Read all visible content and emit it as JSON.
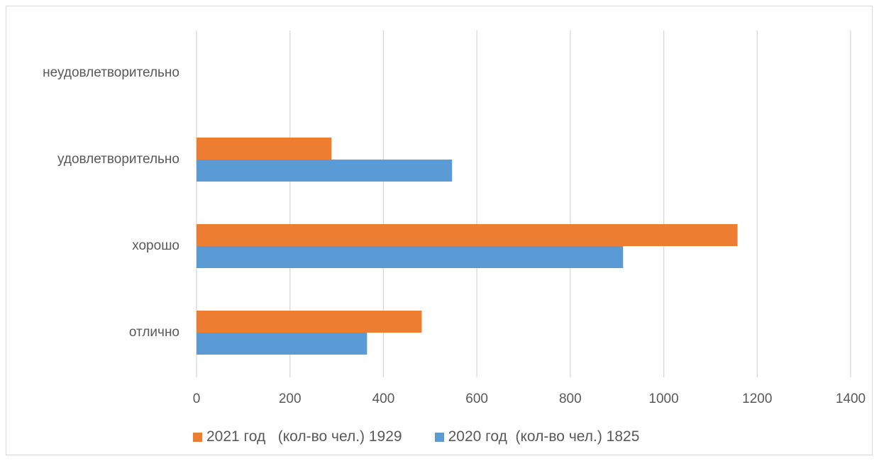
{
  "chart_data": {
    "type": "bar",
    "orientation": "horizontal",
    "categories": [
      "отлично",
      "хорошо",
      "удовлетворительно",
      "неудовлетворительно"
    ],
    "series": [
      {
        "name": "2020 год  (кол-во чел.) 1825",
        "color": "#5b9bd5",
        "values": [
          365,
          913,
          547,
          0
        ]
      },
      {
        "name": "2021 год   (кол-во чел.) 1929",
        "color": "#ed7d31",
        "values": [
          482,
          1158,
          289,
          0
        ]
      }
    ],
    "legend_order": [
      1,
      0
    ],
    "xlim": [
      0,
      1400
    ],
    "xticks": [
      0,
      200,
      400,
      600,
      800,
      1000,
      1200,
      1400
    ],
    "grid": true,
    "legend_position": "bottom",
    "title": "",
    "xlabel": "",
    "ylabel": ""
  }
}
